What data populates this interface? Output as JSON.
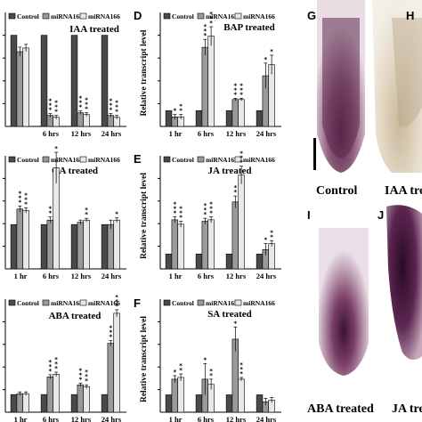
{
  "legend_labels": [
    "Control",
    "miRNA165",
    "miRNA166"
  ],
  "series_colors": [
    "#4a4a4a",
    "#9a9a9a",
    "#e8e8e8"
  ],
  "panel_labels_micro": [
    "G",
    "H",
    "I",
    "J"
  ],
  "image_captions": [
    "Control",
    "IAA tre",
    "ABA treated",
    "JA trea"
  ],
  "chart_data": [
    {
      "type": "bar",
      "panel": "",
      "title": "IAA treated",
      "categories": [
        "",
        "6 hrs",
        "12 hrs",
        "24 hrs"
      ],
      "ylabel": "",
      "ylim": [
        0,
        1.25
      ],
      "yticks": [],
      "grid": false,
      "legend": "top",
      "series": [
        {
          "name": "Control",
          "values": [
            1.0,
            1.0,
            1.0,
            1.0
          ],
          "errors": [
            0,
            0,
            0,
            0
          ],
          "stars": [
            "",
            "",
            "",
            ""
          ]
        },
        {
          "name": "miRNA165",
          "values": [
            0.82,
            0.12,
            0.15,
            0.12
          ],
          "errors": [
            0.05,
            0.02,
            0.02,
            0.02
          ],
          "stars": [
            "",
            "***",
            "***",
            "***"
          ]
        },
        {
          "name": "miRNA166",
          "values": [
            0.86,
            0.1,
            0.13,
            0.1
          ],
          "errors": [
            0.04,
            0.02,
            0.02,
            0.02
          ],
          "stars": [
            "",
            "***",
            "***",
            "***"
          ]
        }
      ]
    },
    {
      "type": "bar",
      "panel": "D",
      "title": "BAP treated",
      "categories": [
        "1 hr",
        "6 hrs",
        "12 hrs",
        "24 hrs"
      ],
      "ylabel": "Relative transcript level",
      "ylim": [
        0,
        7.2
      ],
      "yticks": [],
      "grid": false,
      "legend": "top",
      "series": [
        {
          "name": "Control",
          "values": [
            1.0,
            1.0,
            1.0,
            1.0
          ],
          "errors": [
            0,
            0,
            0,
            0
          ],
          "stars": [
            "",
            "",
            "",
            ""
          ]
        },
        {
          "name": "miRNA165",
          "values": [
            0.6,
            5.0,
            1.7,
            3.2
          ],
          "errors": [
            0.15,
            0.5,
            0.08,
            0.8
          ],
          "stars": [
            "*",
            "***",
            "***",
            "*"
          ]
        },
        {
          "name": "miRNA166",
          "values": [
            0.6,
            5.7,
            1.7,
            3.9
          ],
          "errors": [
            0.15,
            0.6,
            0.08,
            0.6
          ],
          "stars": [
            "**",
            "***",
            "***",
            "*"
          ]
        }
      ]
    },
    {
      "type": "bar",
      "panel": "",
      "title": "GA treated",
      "categories": [
        "1 hr",
        "6 hrs",
        "12 hrs",
        "24 hrs"
      ],
      "ylabel": "",
      "ylim": [
        0,
        2.55
      ],
      "yticks": [],
      "grid": false,
      "legend": "top",
      "series": [
        {
          "name": "Control",
          "values": [
            1.0,
            1.0,
            1.0,
            1.0
          ],
          "errors": [
            0,
            0,
            0,
            0
          ],
          "stars": [
            "",
            "",
            "",
            ""
          ]
        },
        {
          "name": "miRNA165",
          "values": [
            1.35,
            1.1,
            1.05,
            1.0
          ],
          "errors": [
            0.07,
            0.07,
            0.05,
            0.1
          ],
          "stars": [
            "***",
            "**",
            "",
            ""
          ]
        },
        {
          "name": "miRNA166",
          "values": [
            1.32,
            2.28,
            1.1,
            1.1
          ],
          "errors": [
            0.06,
            0.35,
            0.04,
            0.05
          ],
          "stars": [
            "***",
            "*",
            "**",
            "*"
          ]
        }
      ]
    },
    {
      "type": "bar",
      "panel": "E",
      "title": "JA treated",
      "categories": [
        "1 hr",
        "6 hrs",
        "12 hrs",
        "24 hrs"
      ],
      "ylabel": "Relative transcript level",
      "ylim": [
        0,
        7.6
      ],
      "yticks": [],
      "grid": false,
      "legend": "top",
      "series": [
        {
          "name": "Control",
          "values": [
            1.0,
            1.0,
            1.0,
            1.0
          ],
          "errors": [
            0,
            0,
            0,
            0
          ],
          "stars": [
            "",
            "",
            "",
            ""
          ]
        },
        {
          "name": "miRNA165",
          "values": [
            3.3,
            3.2,
            4.5,
            1.3
          ],
          "errors": [
            0.2,
            0.2,
            0.4,
            0.4
          ],
          "stars": [
            "***",
            "***",
            "**",
            "*"
          ]
        },
        {
          "name": "miRNA166",
          "values": [
            3.0,
            3.3,
            6.3,
            1.7
          ],
          "errors": [
            0.2,
            0.2,
            0.6,
            0.2
          ],
          "stars": [
            "***",
            "***",
            "***",
            "**"
          ]
        }
      ]
    },
    {
      "type": "bar",
      "panel": "",
      "title": "ABA treated",
      "categories": [
        "1 hr",
        "6 hrs",
        "12 hrs",
        "24 hrs"
      ],
      "ylabel": "",
      "ylim": [
        0,
        6.4
      ],
      "yticks": [],
      "grid": false,
      "legend": "top",
      "series": [
        {
          "name": "Control",
          "values": [
            1.0,
            1.0,
            1.0,
            1.0
          ],
          "errors": [
            0,
            0,
            0,
            0
          ],
          "stars": [
            "",
            "",
            "",
            ""
          ]
        },
        {
          "name": "miRNA165",
          "values": [
            1.05,
            2.0,
            1.55,
            3.9
          ],
          "errors": [
            0.1,
            0.12,
            0.1,
            0.15
          ],
          "stars": [
            "",
            "***",
            "***",
            "***"
          ]
        },
        {
          "name": "miRNA166",
          "values": [
            1.05,
            2.15,
            1.45,
            5.6
          ],
          "errors": [
            0.1,
            0.12,
            0.1,
            0.2
          ],
          "stars": [
            "",
            "***",
            "***",
            "***"
          ]
        }
      ]
    },
    {
      "type": "bar",
      "panel": "F",
      "title": "SA treated",
      "categories": [
        "1 hr",
        "6 hrs",
        "12 hrs",
        "24 hrs"
      ],
      "ylabel": "Relative transcript level",
      "ylim": [
        0,
        6.5
      ],
      "yticks": [],
      "grid": false,
      "legend": "top",
      "series": [
        {
          "name": "Control",
          "values": [
            1.0,
            1.0,
            1.0,
            1.0
          ],
          "errors": [
            0,
            0,
            0,
            0
          ],
          "stars": [
            "",
            "",
            "",
            ""
          ]
        },
        {
          "name": "miRNA165",
          "values": [
            1.9,
            1.9,
            4.2,
            0.6
          ],
          "errors": [
            0.2,
            0.9,
            0.7,
            0.2
          ],
          "stars": [
            "*",
            "*",
            "*",
            ""
          ]
        },
        {
          "name": "miRNA166",
          "values": [
            2.0,
            1.6,
            1.9,
            0.7
          ],
          "errors": [
            0.2,
            0.3,
            0.1,
            0.15
          ],
          "stars": [
            "**",
            "**",
            "***",
            ""
          ]
        }
      ]
    }
  ]
}
